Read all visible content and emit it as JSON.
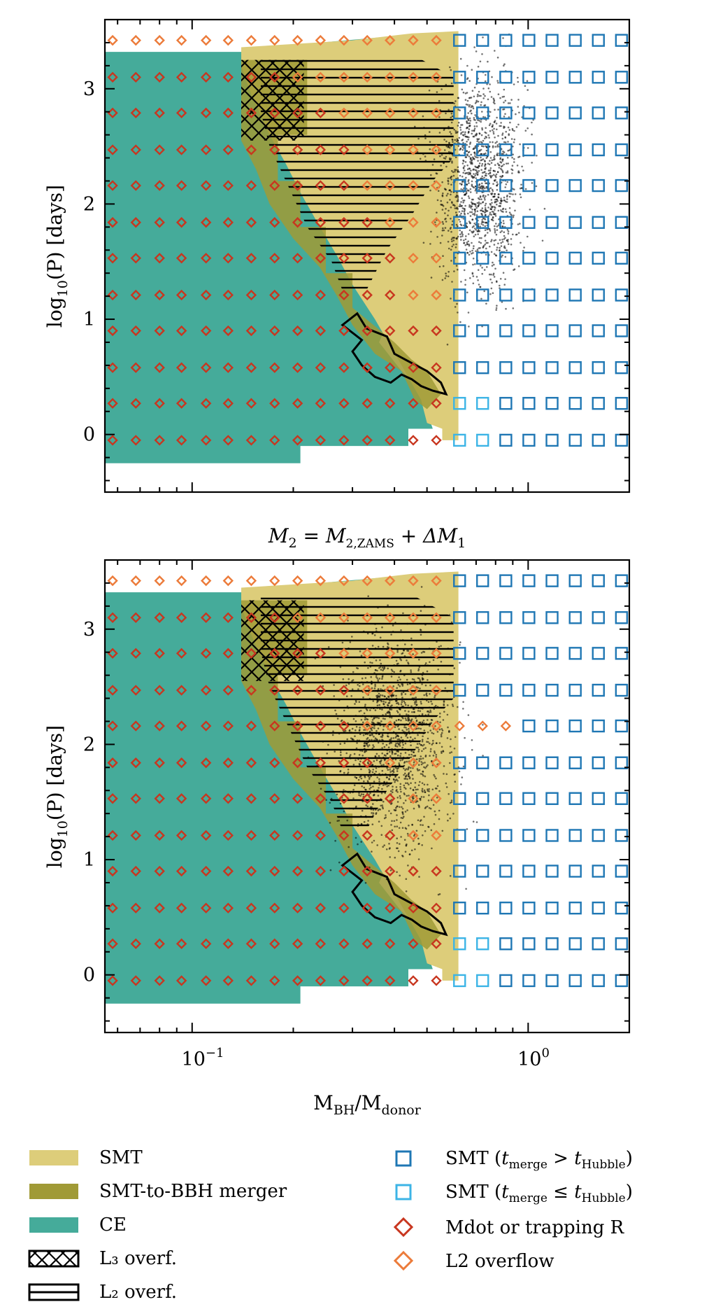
{
  "chart_data": [
    {
      "type": "scatter",
      "panel": "top",
      "title": "",
      "xlabel": "M_BH/M_donor",
      "ylabel": "log10(P) [days]",
      "xscale": "log",
      "xlim": [
        0.055,
        2.0
      ],
      "ylim": [
        -0.5,
        3.6
      ],
      "ytick_labels": [
        "0",
        "1",
        "2",
        "3"
      ],
      "yticks": [
        0,
        1,
        2,
        3
      ],
      "scatter_cloud": {
        "name": "sampled systems",
        "q_range": [
          0.45,
          1.3
        ],
        "logP_range": [
          0.55,
          3.5
        ],
        "center": [
          0.72,
          2.2
        ]
      }
    },
    {
      "type": "scatter",
      "panel": "bottom",
      "title": "M_2 = M_2,ZAMS + ΔM_1",
      "xlabel": "M_BH/M_donor",
      "ylabel": "log10(P) [days]",
      "xscale": "log",
      "xlim": [
        0.055,
        2.0
      ],
      "ylim": [
        -0.5,
        3.6
      ],
      "xtick_labels": [
        "10^-1",
        "10^0"
      ],
      "xticks": [
        0.1,
        1.0
      ],
      "ytick_labels": [
        "0",
        "1",
        "2",
        "3"
      ],
      "yticks": [
        0,
        1,
        2,
        3
      ],
      "scatter_cloud": {
        "name": "sampled systems",
        "q_range": [
          0.2,
          0.8
        ],
        "logP_range": [
          0.55,
          3.5
        ],
        "center": [
          0.4,
          2.0
        ]
      }
    }
  ],
  "grid": {
    "q_values": [
      0.058,
      0.068,
      0.08,
      0.093,
      0.11,
      0.128,
      0.15,
      0.176,
      0.206,
      0.241,
      0.283,
      0.332,
      0.388,
      0.455,
      0.533,
      0.625,
      0.732,
      0.858,
      1.005,
      1.178,
      1.381,
      1.618,
      1.896
    ],
    "logP_values": [
      -0.05,
      0.27,
      0.58,
      0.9,
      1.21,
      1.53,
      1.84,
      2.16,
      2.47,
      2.79,
      3.1,
      3.42
    ]
  },
  "regions": {
    "CE_boundary_logP_max": [
      3.3,
      3.3,
      3.3,
      3.3,
      3.3,
      3.3,
      3.3,
      3.15,
      2.95,
      2.75,
      2.5,
      2.0,
      1.5,
      1.1,
      0.8,
      0.6
    ],
    "SMT_qmax": 0.62
  },
  "legend": {
    "left": [
      {
        "label": "SMT",
        "color": "#ddcd7a",
        "kind": "patch"
      },
      {
        "label": "SMT-to-BBH merger",
        "color": "#a09a36",
        "kind": "patch"
      },
      {
        "label": "CE",
        "color": "#45ab9a",
        "kind": "patch"
      },
      {
        "label": "L₃ overf.",
        "kind": "hatch-cross"
      },
      {
        "label": "L₂ overf.",
        "kind": "hatch-horizontal"
      }
    ],
    "right": [
      {
        "label_main": "SMT (",
        "sub_a": "merge",
        "op": " > ",
        "sub_b": "Hubble",
        "close": ")",
        "color": "#1f77b4",
        "kind": "square"
      },
      {
        "label_main": "SMT (",
        "sub_a": "merge",
        "op": " ≤ ",
        "sub_b": "Hubble",
        "close": ")",
        "color": "#3cb4e6",
        "kind": "square"
      },
      {
        "label": "Mdot or trapping R",
        "color": "#c8361f",
        "kind": "diamond"
      },
      {
        "label": "L2 overflow",
        "color": "#ec7b3a",
        "kind": "diamond"
      }
    ]
  },
  "colors": {
    "smt": "#ddcd7a",
    "smt_bbh": "#a09a36",
    "ce": "#45ab9a",
    "square_dark": "#1f77b4",
    "square_light": "#3cb4e6",
    "diamond_red": "#c8361f",
    "diamond_orange": "#ec7b3a"
  },
  "text": {
    "ylabel_main": "log",
    "ylabel_sub": "10",
    "ylabel_rest": "(P) [days]",
    "xlabel_a": "M",
    "xlabel_a_sub": "BH",
    "xlabel_slash": "/M",
    "xlabel_b_sub": "donor",
    "title_main": "M",
    "title_sub2": "2",
    "title_eq": " = M",
    "title_sub_zams": "2,ZAMS",
    "title_plus": " + ΔM",
    "title_sub1": "1",
    "xtick_a_base": "10",
    "xtick_a_exp": "−1",
    "xtick_b_base": "10",
    "xtick_b_exp": "0",
    "t_letter": "t"
  }
}
